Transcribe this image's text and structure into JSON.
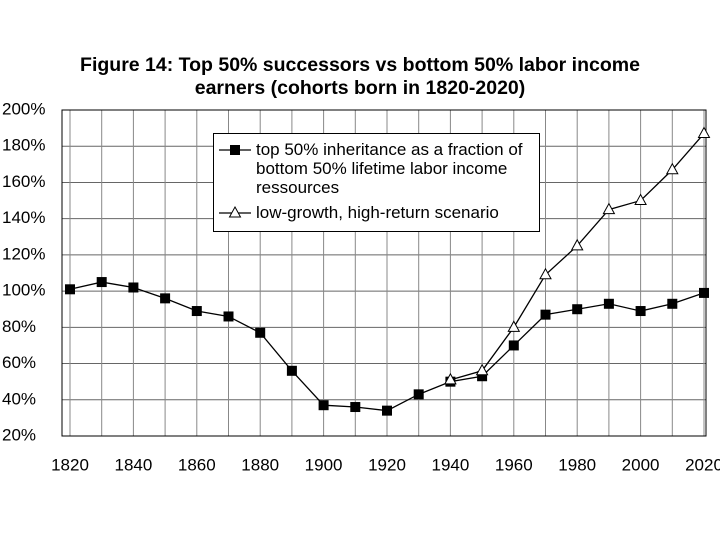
{
  "chart_data": {
    "type": "line",
    "title": "Figure 14: Top 50% successors vs bottom 50% labor income earners (cohorts born in 1820-2020)",
    "x": [
      1820,
      1830,
      1840,
      1850,
      1860,
      1870,
      1880,
      1890,
      1900,
      1910,
      1920,
      1930,
      1940,
      1950,
      1960,
      1970,
      1980,
      1990,
      2000,
      2010,
      2020
    ],
    "series": [
      {
        "name": "top 50% inheritance as a fraction of bottom 50% lifetime labor income ressources",
        "color": "#000000",
        "marker": "square",
        "values": [
          101,
          105,
          102,
          96,
          89,
          86,
          77,
          56,
          37,
          36,
          34,
          43,
          50,
          53,
          70,
          87,
          90,
          93,
          89,
          93,
          99
        ]
      },
      {
        "name": "low-growth, high-return scenario",
        "color": "#000000",
        "marker": "triangle",
        "values": [
          null,
          null,
          null,
          null,
          null,
          null,
          null,
          null,
          null,
          null,
          null,
          null,
          51,
          56,
          80,
          109,
          125,
          145,
          150,
          167,
          187
        ]
      }
    ],
    "xlim": [
      1820,
      2020
    ],
    "xticks": [
      1820,
      1840,
      1860,
      1880,
      1900,
      1920,
      1940,
      1960,
      1980,
      2000,
      2020
    ],
    "ylim": [
      20,
      200
    ],
    "yticks": [
      {
        "value": 20,
        "label": "20%"
      },
      {
        "value": 40,
        "label": "40%"
      },
      {
        "value": 60,
        "label": "60%"
      },
      {
        "value": 80,
        "label": "80%"
      },
      {
        "value": 100,
        "label": "100%"
      },
      {
        "value": 120,
        "label": "120%"
      },
      {
        "value": 140,
        "label": "140%"
      },
      {
        "value": 160,
        "label": "160%"
      },
      {
        "value": 180,
        "label": "180%"
      },
      {
        "value": 200,
        "label": "200%"
      }
    ],
    "grid": true
  }
}
